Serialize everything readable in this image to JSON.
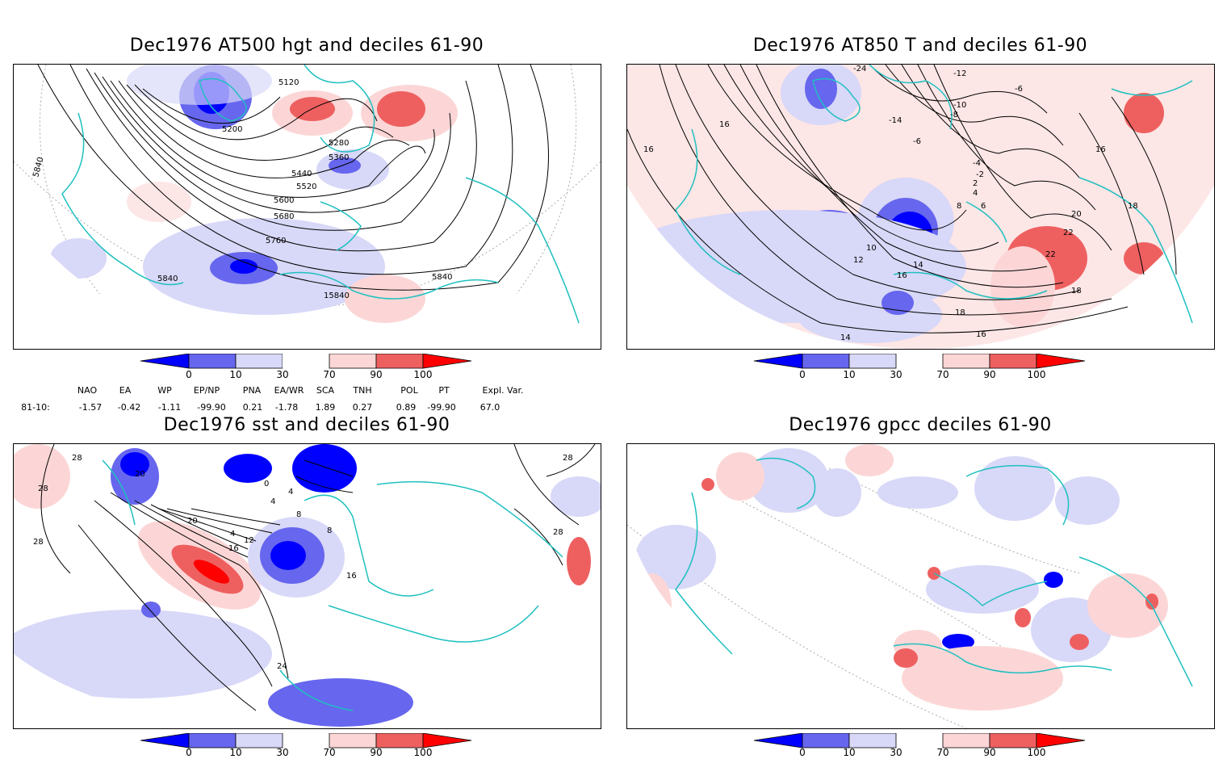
{
  "panels": {
    "p1": {
      "title": "Dec1976 AT500 hgt and deciles 61-90",
      "contour_labels": [
        "5120",
        "5200",
        "5280",
        "5360",
        "5440",
        "5520",
        "5600",
        "5680",
        "5760",
        "5840",
        "5840",
        "5840",
        "15840",
        "5840"
      ]
    },
    "p2": {
      "title": "Dec1976 AT850 T and deciles 61-90",
      "contour_labels": [
        "-24",
        "-12",
        "-10",
        "-8",
        "-6",
        "-14",
        "-6",
        "-4",
        "-2",
        "2",
        "4",
        "6",
        "8",
        "10",
        "12",
        "14",
        "16",
        "16",
        "18",
        "18",
        "20",
        "22",
        "22",
        "16",
        "16",
        "14",
        "18",
        "16"
      ]
    },
    "p3": {
      "title": "Dec1976 sst and deciles 61-90",
      "contour_labels": [
        "28",
        "28",
        "28",
        "20",
        "0",
        "4",
        "8",
        "12",
        "16",
        "20",
        "4",
        "4",
        "8",
        "16",
        "24",
        "28",
        "28"
      ]
    },
    "p4": {
      "title": "Dec1976 gpcc deciles 61-90"
    }
  },
  "colorbar": {
    "labels": [
      "0",
      "10",
      "30",
      "70",
      "90",
      "100"
    ],
    "colors": [
      "#0000ff",
      "#6666ee",
      "#d8d8f8",
      "#ffffff",
      "#fcd6d6",
      "#ee6060",
      "#ff0000"
    ]
  },
  "indices": {
    "headers": [
      "NAO",
      "EA",
      "WP",
      "EP/NP",
      "PNA",
      "EA/WR",
      "SCA",
      "TNH",
      "POL",
      "PT",
      "Expl. Var."
    ],
    "row_label": "81-10:",
    "values": [
      "-1.57",
      "-0.42",
      "-1.11",
      "-99.90",
      "0.21",
      "-1.78",
      "1.89",
      "0.27",
      "0.89",
      "-99.90",
      "67.0"
    ]
  },
  "colors": {
    "coast": "#20c0c0",
    "contour": "#000000",
    "grid": "#9a9a9a"
  }
}
